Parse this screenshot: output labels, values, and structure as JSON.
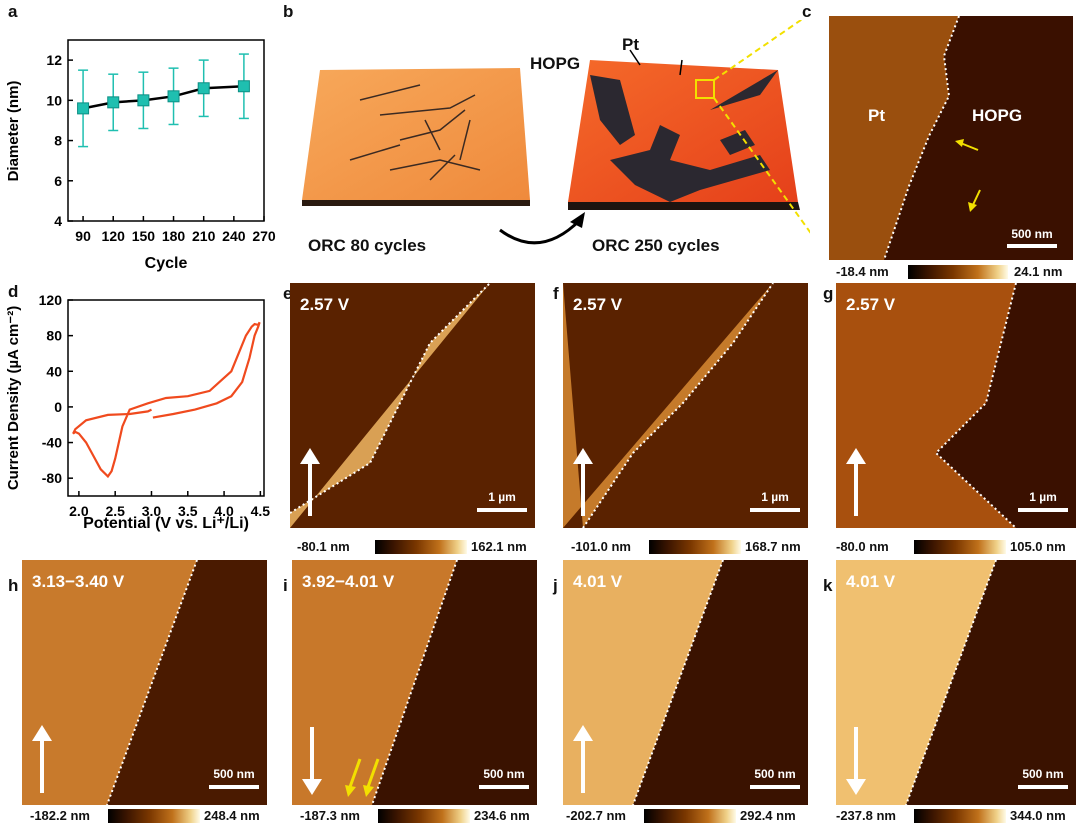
{
  "panels": {
    "a": {
      "label": "a",
      "xlabel": "Cycle",
      "ylabel": "Diameter (nm)",
      "xticks": [
        "90",
        "120",
        "150",
        "180",
        "210",
        "240",
        "270"
      ],
      "yticks": [
        "4",
        "6",
        "8",
        "10",
        "12"
      ]
    },
    "b": {
      "label": "b",
      "left_caption": "ORC 80 cycles",
      "right_caption": "ORC 250 cycles",
      "label_hopg": "HOPG",
      "label_pt": "Pt"
    },
    "c": {
      "label": "c",
      "label_pt": "Pt",
      "label_hopg": "HOPG",
      "scalebar": "500 nm",
      "cbar_min": "-18.4 nm",
      "cbar_max": "24.1 nm"
    },
    "d": {
      "label": "d",
      "xlabel": "Potential (V vs. Li⁺/Li)",
      "ylabel": "Current Density (µA cm⁻²)",
      "xticks": [
        "2.0",
        "2.5",
        "3.0",
        "3.5",
        "4.0",
        "4.5"
      ],
      "yticks": [
        "-80",
        "-40",
        "0",
        "40",
        "80",
        "120"
      ]
    },
    "e": {
      "label": "e",
      "voltage": "2.57 V",
      "scalebar": "1 µm",
      "cbar_min": "-80.1 nm",
      "cbar_max": "162.1 nm"
    },
    "f": {
      "label": "f",
      "voltage": "2.57 V",
      "scalebar": "1 µm",
      "cbar_min": "-101.0 nm",
      "cbar_max": "168.7 nm"
    },
    "g": {
      "label": "g",
      "voltage": "2.57 V",
      "scalebar": "1 µm",
      "cbar_min": "-80.0 nm",
      "cbar_max": "105.0 nm"
    },
    "h": {
      "label": "h",
      "voltage": "3.13−3.40 V",
      "scalebar": "500 nm",
      "cbar_min": "-182.2 nm",
      "cbar_max": "248.4 nm"
    },
    "i": {
      "label": "i",
      "voltage": "3.92−4.01 V",
      "scalebar": "500 nm",
      "cbar_min": "-187.3 nm",
      "cbar_max": "234.6 nm"
    },
    "j": {
      "label": "j",
      "voltage": "4.01 V",
      "scalebar": "500 nm",
      "cbar_min": "-202.7 nm",
      "cbar_max": "292.4 nm"
    },
    "k": {
      "label": "k",
      "voltage": "4.01 V",
      "scalebar": "500 nm",
      "cbar_min": "-237.8 nm",
      "cbar_max": "344.0 nm"
    }
  },
  "chart_data": [
    {
      "type": "line",
      "panel": "a",
      "xlabel": "Cycle",
      "ylabel": "Diameter (nm)",
      "x": [
        90,
        120,
        150,
        180,
        210,
        250
      ],
      "values": [
        9.6,
        9.9,
        10.0,
        10.2,
        10.6,
        10.7
      ],
      "error": [
        1.9,
        1.4,
        1.4,
        1.4,
        1.4,
        1.6
      ],
      "xlim": [
        75,
        270
      ],
      "ylim": [
        4,
        13
      ],
      "color": "#1fbfb0"
    },
    {
      "type": "line",
      "panel": "d",
      "xlabel": "Potential (V vs. Li⁺/Li)",
      "ylabel": "Current Density (µA cm⁻²)",
      "xlim": [
        1.85,
        4.55
      ],
      "ylim": [
        -100,
        120
      ],
      "color": "#f04a1e",
      "x": [
        3.02,
        3.3,
        3.6,
        3.9,
        4.1,
        4.25,
        4.35,
        4.42,
        4.47,
        4.49,
        4.47,
        4.42,
        4.38,
        4.3,
        4.1,
        3.8,
        3.5,
        3.2,
        2.95,
        2.7,
        2.6,
        2.5,
        2.45,
        2.4,
        2.3,
        2.2,
        2.1,
        2.0,
        1.95,
        1.92,
        1.95,
        2.1,
        2.4,
        2.7,
        2.95,
        3.0
      ],
      "y": [
        -12,
        -8,
        -3,
        4,
        12,
        28,
        55,
        80,
        90,
        95,
        92,
        93,
        90,
        80,
        40,
        18,
        12,
        10,
        4,
        -3,
        -22,
        -58,
        -72,
        -78,
        -70,
        -55,
        -40,
        -30,
        -28,
        -30,
        -25,
        -15,
        -9,
        -8,
        -5,
        -3
      ]
    }
  ]
}
